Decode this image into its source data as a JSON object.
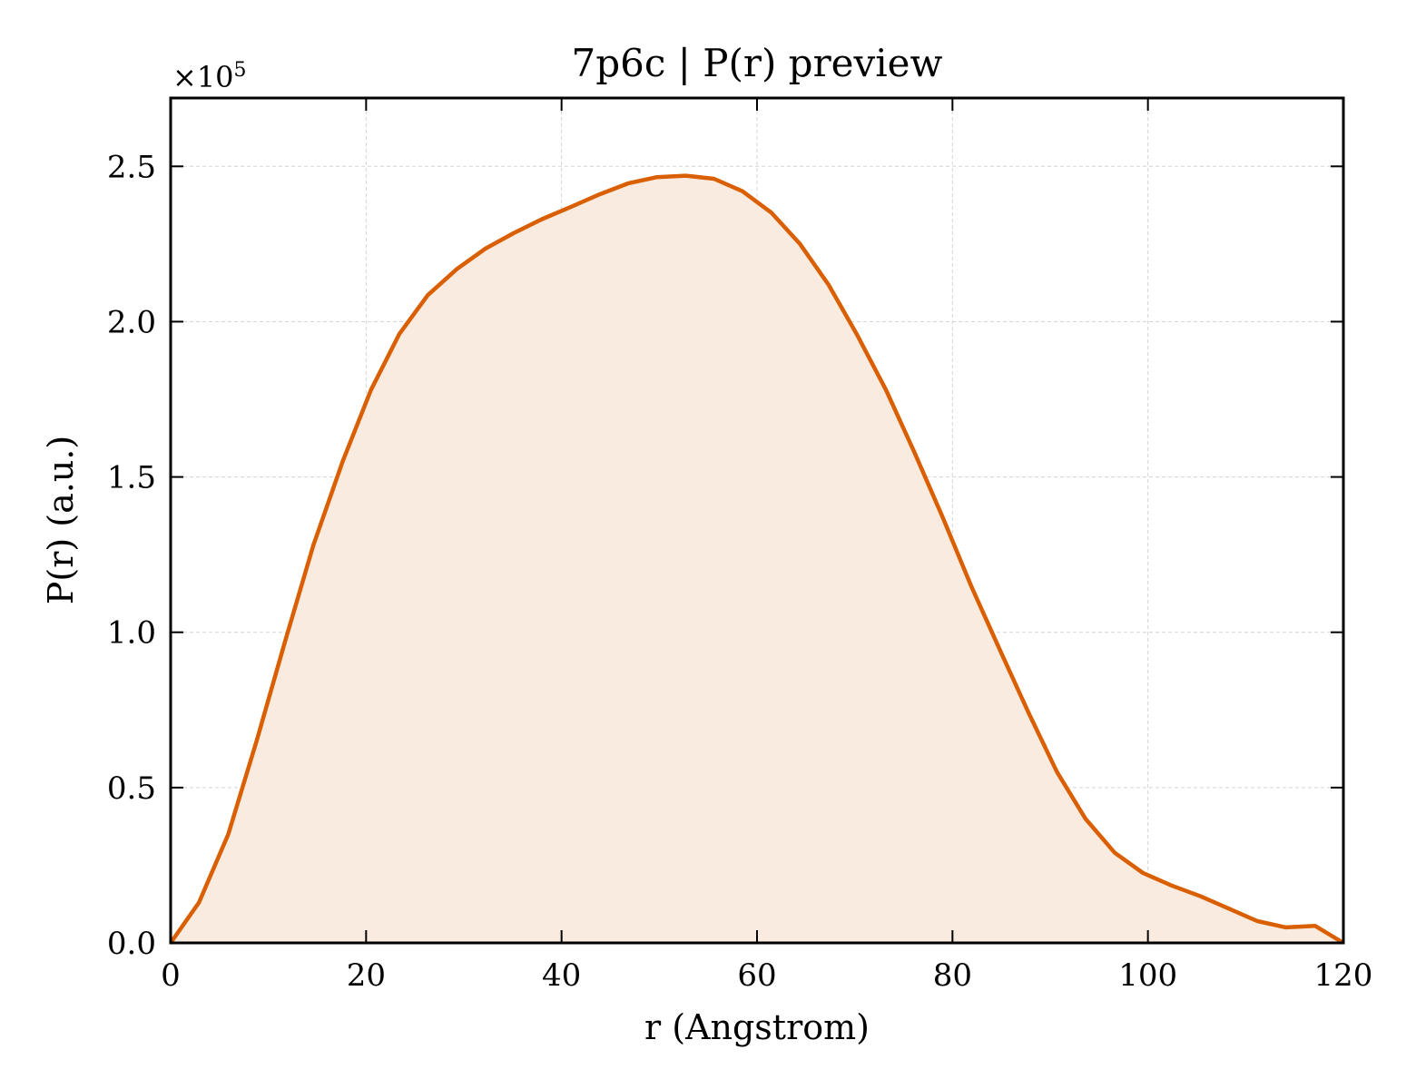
{
  "chart_data": {
    "type": "area",
    "title": "7p6c | P(r) preview",
    "xlabel": "r (Angstrom)",
    "ylabel": "P(r) (a.u.)",
    "y_multiplier": "×10",
    "y_multiplier_exp": "5",
    "xlim": [
      0,
      120
    ],
    "ylim": [
      0,
      2.72
    ],
    "xticks": [
      0,
      20,
      40,
      60,
      80,
      100,
      120
    ],
    "xtick_labels": [
      "0",
      "20",
      "40",
      "60",
      "80",
      "100",
      "120"
    ],
    "yticks": [
      0,
      0.5,
      1.0,
      1.5,
      2.0,
      2.5
    ],
    "ytick_labels": [
      "0.0",
      "0.5",
      "1.0",
      "1.5",
      "2.0",
      "2.5"
    ],
    "grid": true,
    "legend": "none",
    "line_color": "#d95f02",
    "fill_color": "#f9ebe0",
    "series": [
      {
        "x": [
          0,
          2.9,
          5.9,
          8.8,
          11.7,
          14.6,
          17.6,
          20.5,
          23.4,
          26.3,
          29.3,
          32.2,
          35.1,
          38.0,
          41.0,
          43.9,
          46.8,
          49.7,
          52.7,
          55.6,
          58.5,
          61.5,
          64.4,
          67.3,
          70.2,
          73.2,
          76.1,
          79.0,
          81.9,
          84.9,
          87.8,
          90.7,
          93.6,
          96.6,
          99.5,
          102.4,
          105.4,
          108.3,
          111.2,
          114.1,
          117.1,
          120.0
        ],
        "y": [
          0.0,
          0.13,
          0.35,
          0.65,
          0.97,
          1.28,
          1.55,
          1.78,
          1.96,
          2.085,
          2.17,
          2.235,
          2.285,
          2.33,
          2.37,
          2.41,
          2.445,
          2.465,
          2.47,
          2.46,
          2.42,
          2.35,
          2.25,
          2.12,
          1.96,
          1.78,
          1.58,
          1.37,
          1.15,
          0.94,
          0.74,
          0.55,
          0.4,
          0.29,
          0.225,
          0.185,
          0.15,
          0.11,
          0.07,
          0.05,
          0.055,
          0.0
        ]
      }
    ]
  }
}
